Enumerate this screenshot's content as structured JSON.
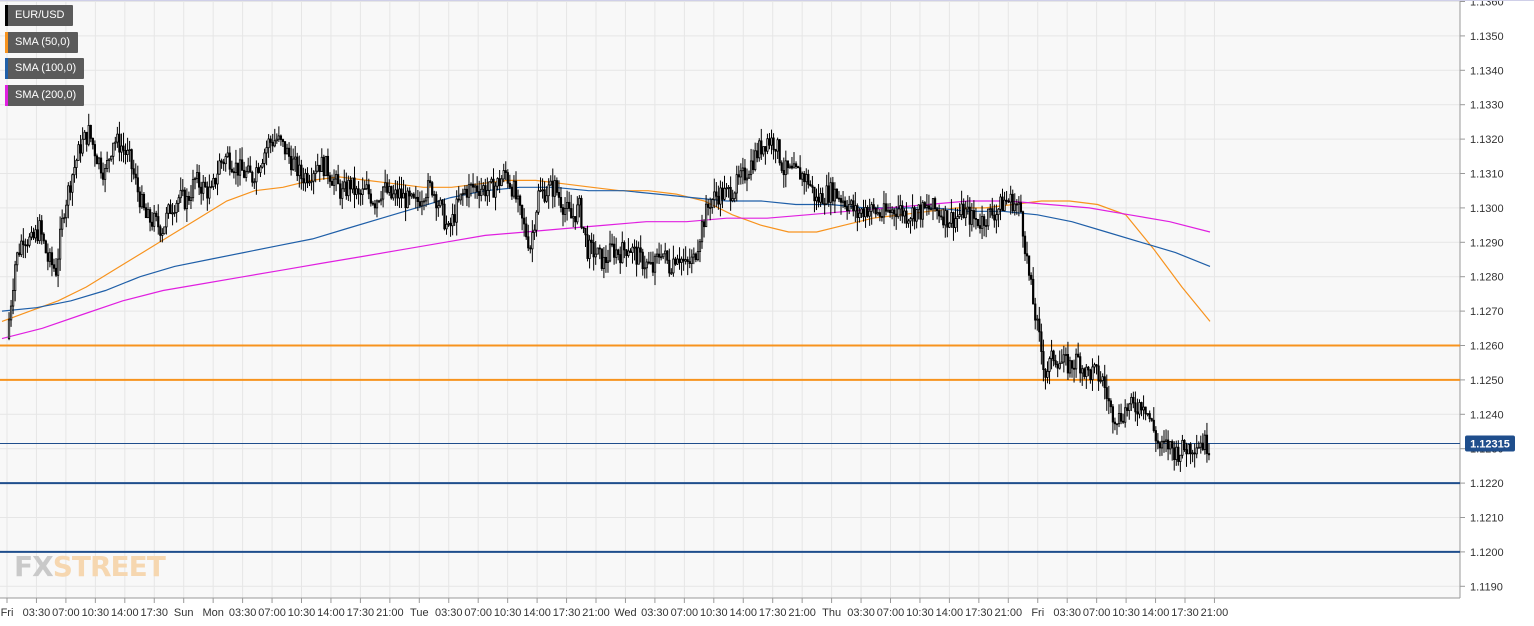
{
  "chart_data": {
    "type": "candlestick",
    "instrument": "EUR/USD",
    "legend": [
      {
        "label": "EUR/USD",
        "color": "#000000"
      },
      {
        "label": "SMA (50,0)",
        "color": "#f7931e"
      },
      {
        "label": "SMA (100,0)",
        "color": "#1f5fa8"
      },
      {
        "label": "SMA (200,0)",
        "color": "#e020e0"
      }
    ],
    "ylim": [
      1.119,
      1.1365
    ],
    "y_ticks": [
      "1.1360",
      "1.1350",
      "1.1340",
      "1.1330",
      "1.1320",
      "1.1310",
      "1.1300",
      "1.1290",
      "1.1280",
      "1.1270",
      "1.1260",
      "1.1250",
      "1.1240",
      "1.1230",
      "1.1220",
      "1.1210",
      "1.1200",
      "1.1190"
    ],
    "x_ticks": [
      "Fri",
      "03:30",
      "07:00",
      "10:30",
      "14:00",
      "17:30",
      "Sun",
      "Mon",
      "03:30",
      "07:00",
      "10:30",
      "14:00",
      "17:30",
      "21:00",
      "Tue",
      "03:30",
      "07:00",
      "10:30",
      "14:00",
      "17:30",
      "21:00",
      "Wed",
      "03:30",
      "07:00",
      "10:30",
      "14:00",
      "17:30",
      "21:00",
      "Thu",
      "03:30",
      "07:00",
      "10:30",
      "14:00",
      "17:30",
      "21:00",
      "Fri",
      "03:30",
      "07:00",
      "10:30",
      "14:00",
      "17:30",
      "21:00"
    ],
    "horizontal_levels": [
      {
        "value": 1.126,
        "color": "#f7931e"
      },
      {
        "value": 1.125,
        "color": "#f7931e"
      },
      {
        "value": 1.122,
        "color": "#1f4e8c"
      },
      {
        "value": 1.12,
        "color": "#1f4e8c"
      }
    ],
    "current_price": {
      "value": 1.12315,
      "label": "1.12315",
      "color": "#1f4e8c"
    },
    "price_path": [
      1.1262,
      1.1284,
      1.1292,
      1.129,
      1.1294,
      1.1285,
      1.1282,
      1.13,
      1.131,
      1.1318,
      1.1322,
      1.1315,
      1.131,
      1.132,
      1.1318,
      1.1314,
      1.1305,
      1.1297,
      1.1296,
      1.1294,
      1.13,
      1.1303,
      1.1302,
      1.1308,
      1.1306,
      1.1304,
      1.1313,
      1.1315,
      1.1312,
      1.131,
      1.1309,
      1.1314,
      1.1319,
      1.132,
      1.1317,
      1.1313,
      1.1309,
      1.131,
      1.1313,
      1.1312,
      1.1308,
      1.1304,
      1.1307,
      1.1303,
      1.1305,
      1.1302,
      1.1306,
      1.1303,
      1.1304,
      1.1302,
      1.1301,
      1.1305,
      1.1306,
      1.13,
      1.1293,
      1.13,
      1.1305,
      1.1306,
      1.1306,
      1.1305,
      1.1307,
      1.131,
      1.1305,
      1.1296,
      1.1289,
      1.1304,
      1.1305,
      1.1306,
      1.1301,
      1.1297,
      1.13,
      1.1288,
      1.1287,
      1.1284,
      1.1288,
      1.1287,
      1.1289,
      1.1286,
      1.1284,
      1.1282,
      1.1288,
      1.1283,
      1.1287,
      1.1283,
      1.1285,
      1.1295,
      1.1302,
      1.1304,
      1.1304,
      1.1306,
      1.1309,
      1.1313,
      1.1317,
      1.132,
      1.1319,
      1.1311,
      1.131,
      1.131,
      1.1308,
      1.1302,
      1.1304,
      1.1305,
      1.1303,
      1.1301,
      1.1298,
      1.13,
      1.1299,
      1.1298,
      1.1299,
      1.13,
      1.1298,
      1.1299,
      1.1299,
      1.13,
      1.1299,
      1.1297,
      1.1297,
      1.1299,
      1.1297,
      1.1296,
      1.1298,
      1.1299,
      1.1302,
      1.1302,
      1.1299,
      1.128,
      1.1265,
      1.1252,
      1.1257,
      1.1255,
      1.1254,
      1.1256,
      1.1252,
      1.1252,
      1.125,
      1.1241,
      1.1239,
      1.1242,
      1.1242,
      1.1244,
      1.1237,
      1.123,
      1.1231,
      1.1229,
      1.123,
      1.1231,
      1.1232,
      1.1231
    ],
    "sma_50_path": [
      1.1267,
      1.127,
      1.1273,
      1.1277,
      1.1282,
      1.1287,
      1.1292,
      1.1297,
      1.1302,
      1.1305,
      1.1306,
      1.1308,
      1.1309,
      1.1308,
      1.1307,
      1.1306,
      1.1306,
      1.1307,
      1.1308,
      1.1308,
      1.1307,
      1.1306,
      1.1305,
      1.1305,
      1.1304,
      1.1302,
      1.1298,
      1.1295,
      1.1293,
      1.1293,
      1.1295,
      1.1297,
      1.1298,
      1.1299,
      1.13,
      1.13,
      1.1301,
      1.1302,
      1.1302,
      1.1301,
      1.1298,
      1.1288,
      1.1277,
      1.1267
    ],
    "sma_100_path": [
      1.127,
      1.1271,
      1.1273,
      1.1276,
      1.128,
      1.1283,
      1.1285,
      1.1287,
      1.1289,
      1.1291,
      1.1294,
      1.1297,
      1.13,
      1.1303,
      1.1305,
      1.1306,
      1.1306,
      1.1305,
      1.1305,
      1.1304,
      1.1303,
      1.1302,
      1.1302,
      1.1301,
      1.1301,
      1.13,
      1.13,
      1.13,
      1.1299,
      1.1299,
      1.1298,
      1.1296,
      1.1293,
      1.129,
      1.1287,
      1.1283
    ],
    "sma_200_path": [
      1.1262,
      1.1265,
      1.1269,
      1.1273,
      1.1276,
      1.1278,
      1.128,
      1.1282,
      1.1284,
      1.1286,
      1.1288,
      1.129,
      1.1292,
      1.1293,
      1.1294,
      1.1295,
      1.1296,
      1.1296,
      1.1297,
      1.1297,
      1.1298,
      1.1299,
      1.13,
      1.1301,
      1.1302,
      1.1302,
      1.1301,
      1.13,
      1.1298,
      1.1296,
      1.1293
    ],
    "grid": true
  },
  "watermark": {
    "fx": "FX",
    "street": "STREET"
  }
}
